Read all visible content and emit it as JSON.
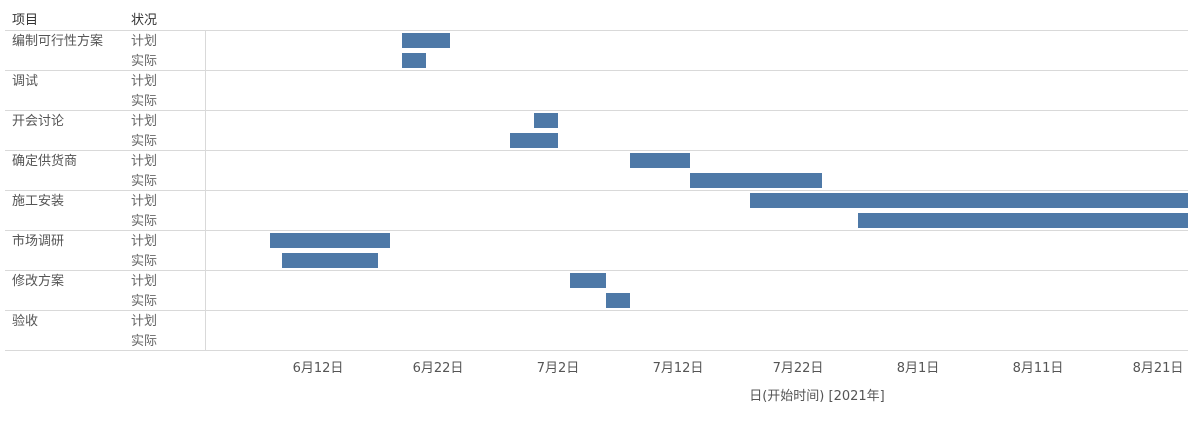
{
  "header": {
    "project_label": "项目",
    "status_label": "状况"
  },
  "chart_data": {
    "type": "gantt",
    "xlabel": "日(开始时间) [2021年]",
    "year": 2021,
    "xlim": [
      "2021-06-04",
      "2021-08-22"
    ],
    "ticks": [
      {
        "date": "2021-06-12",
        "label": "6月12日"
      },
      {
        "date": "2021-06-22",
        "label": "6月22日"
      },
      {
        "date": "2021-07-02",
        "label": "7月2日"
      },
      {
        "date": "2021-07-12",
        "label": "7月12日"
      },
      {
        "date": "2021-07-22",
        "label": "7月22日"
      },
      {
        "date": "2021-08-01",
        "label": "8月1日"
      },
      {
        "date": "2021-08-11",
        "label": "8月11日"
      },
      {
        "date": "2021-08-21",
        "label": "8月21日"
      }
    ],
    "status_labels": [
      "计划",
      "实际"
    ],
    "bar_color": "#4e79a7",
    "grid_color": "#d9d9d9",
    "tasks": [
      {
        "name": "编制可行性方案",
        "plan": {
          "start": "2021-06-19",
          "end": "2021-06-23"
        },
        "actual": {
          "start": "2021-06-19",
          "end": "2021-06-21"
        }
      },
      {
        "name": "调试",
        "plan": null,
        "actual": null
      },
      {
        "name": "开会讨论",
        "plan": {
          "start": "2021-06-30",
          "end": "2021-07-02"
        },
        "actual": {
          "start": "2021-06-28",
          "end": "2021-07-02"
        }
      },
      {
        "name": "确定供货商",
        "plan": {
          "start": "2021-07-08",
          "end": "2021-07-13"
        },
        "actual": {
          "start": "2021-07-13",
          "end": "2021-07-24"
        }
      },
      {
        "name": "施工安装",
        "plan": {
          "start": "2021-07-18",
          "end": "2021-08-25"
        },
        "actual": {
          "start": "2021-07-27",
          "end": "2021-08-25"
        }
      },
      {
        "name": "市场调研",
        "plan": {
          "start": "2021-06-08",
          "end": "2021-06-18"
        },
        "actual": {
          "start": "2021-06-09",
          "end": "2021-06-17"
        }
      },
      {
        "name": "修改方案",
        "plan": {
          "start": "2021-07-03",
          "end": "2021-07-06"
        },
        "actual": {
          "start": "2021-07-06",
          "end": "2021-07-08"
        }
      },
      {
        "name": "验收",
        "plan": null,
        "actual": null
      }
    ]
  }
}
